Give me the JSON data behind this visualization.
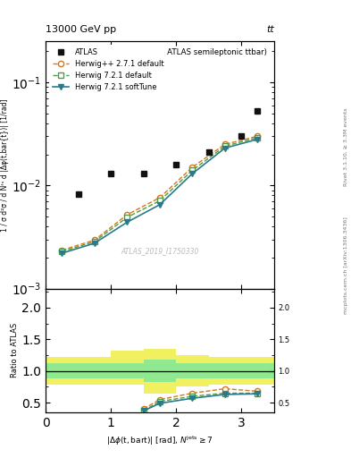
{
  "title_top": "13000 GeV pp",
  "title_right": "tt",
  "plot_title": "Δφ (ttbar) (ATLAS semileptonic ttbar)",
  "xlabel": "|\\Delta\\phi(t,bar{t})| [rad], N^{jets} \\geq 7",
  "ylabel_main": "1 / σ d²σ / d N^{fbs} d |Δφ(t,bar{t})| [1/rad]",
  "ylabel_ratio": "Ratio to ATLAS",
  "right_label1": "Rivet 3.1.10, ≥ 3.3M events",
  "right_label2": "mcplots.cern.ch [arXiv:1306.3436]",
  "watermark": "ATLAS_2019_I1750330",
  "atlas_x": [
    0.5,
    1.0,
    1.5,
    2.0,
    2.5,
    3.0,
    3.25
  ],
  "atlas_y": [
    0.0082,
    0.013,
    0.013,
    0.016,
    0.021,
    0.03,
    0.053
  ],
  "herwig_x": [
    0.25,
    0.75,
    1.25,
    1.75,
    2.25,
    2.75,
    3.25
  ],
  "herwig_pp_y": [
    0.00235,
    0.00295,
    0.0052,
    0.0076,
    0.015,
    0.025,
    0.03
  ],
  "herwig721d_y": [
    0.00228,
    0.00285,
    0.0049,
    0.0071,
    0.014,
    0.024,
    0.029
  ],
  "herwig721s_y": [
    0.0022,
    0.00275,
    0.0044,
    0.0065,
    0.013,
    0.023,
    0.028
  ],
  "ratio_x": [
    1.5,
    1.75,
    2.25,
    2.75,
    3.25
  ],
  "ratio_herwig_pp": [
    0.4,
    0.55,
    0.65,
    0.72,
    0.68
  ],
  "ratio_herwig721d": [
    0.37,
    0.52,
    0.6,
    0.65,
    0.65
  ],
  "ratio_herwig721s": [
    0.37,
    0.49,
    0.57,
    0.63,
    0.64
  ],
  "band_x_edges": [
    0.0,
    0.5,
    1.0,
    1.5,
    2.0,
    2.5,
    3.0,
    3.5
  ],
  "band_green_lo": [
    0.88,
    0.88,
    0.88,
    0.82,
    0.88,
    0.88,
    0.88,
    0.88
  ],
  "band_green_hi": [
    1.12,
    1.12,
    1.12,
    1.18,
    1.12,
    1.12,
    1.12,
    1.12
  ],
  "band_yellow_lo": [
    0.78,
    0.78,
    0.78,
    0.65,
    0.75,
    0.78,
    0.78,
    0.78
  ],
  "band_yellow_hi": [
    1.22,
    1.22,
    1.32,
    1.35,
    1.25,
    1.22,
    1.22,
    1.22
  ],
  "color_atlas": "#111111",
  "color_herwig_pp": "#d4781a",
  "color_herwig721d": "#4a9e40",
  "color_herwig721s": "#2a7a8c",
  "color_band_green": "#90e890",
  "color_band_yellow": "#f0f060",
  "xlim": [
    0,
    3.5
  ],
  "ylim_main": [
    0.001,
    0.25
  ],
  "ylim_ratio": [
    0.35,
    2.3
  ]
}
